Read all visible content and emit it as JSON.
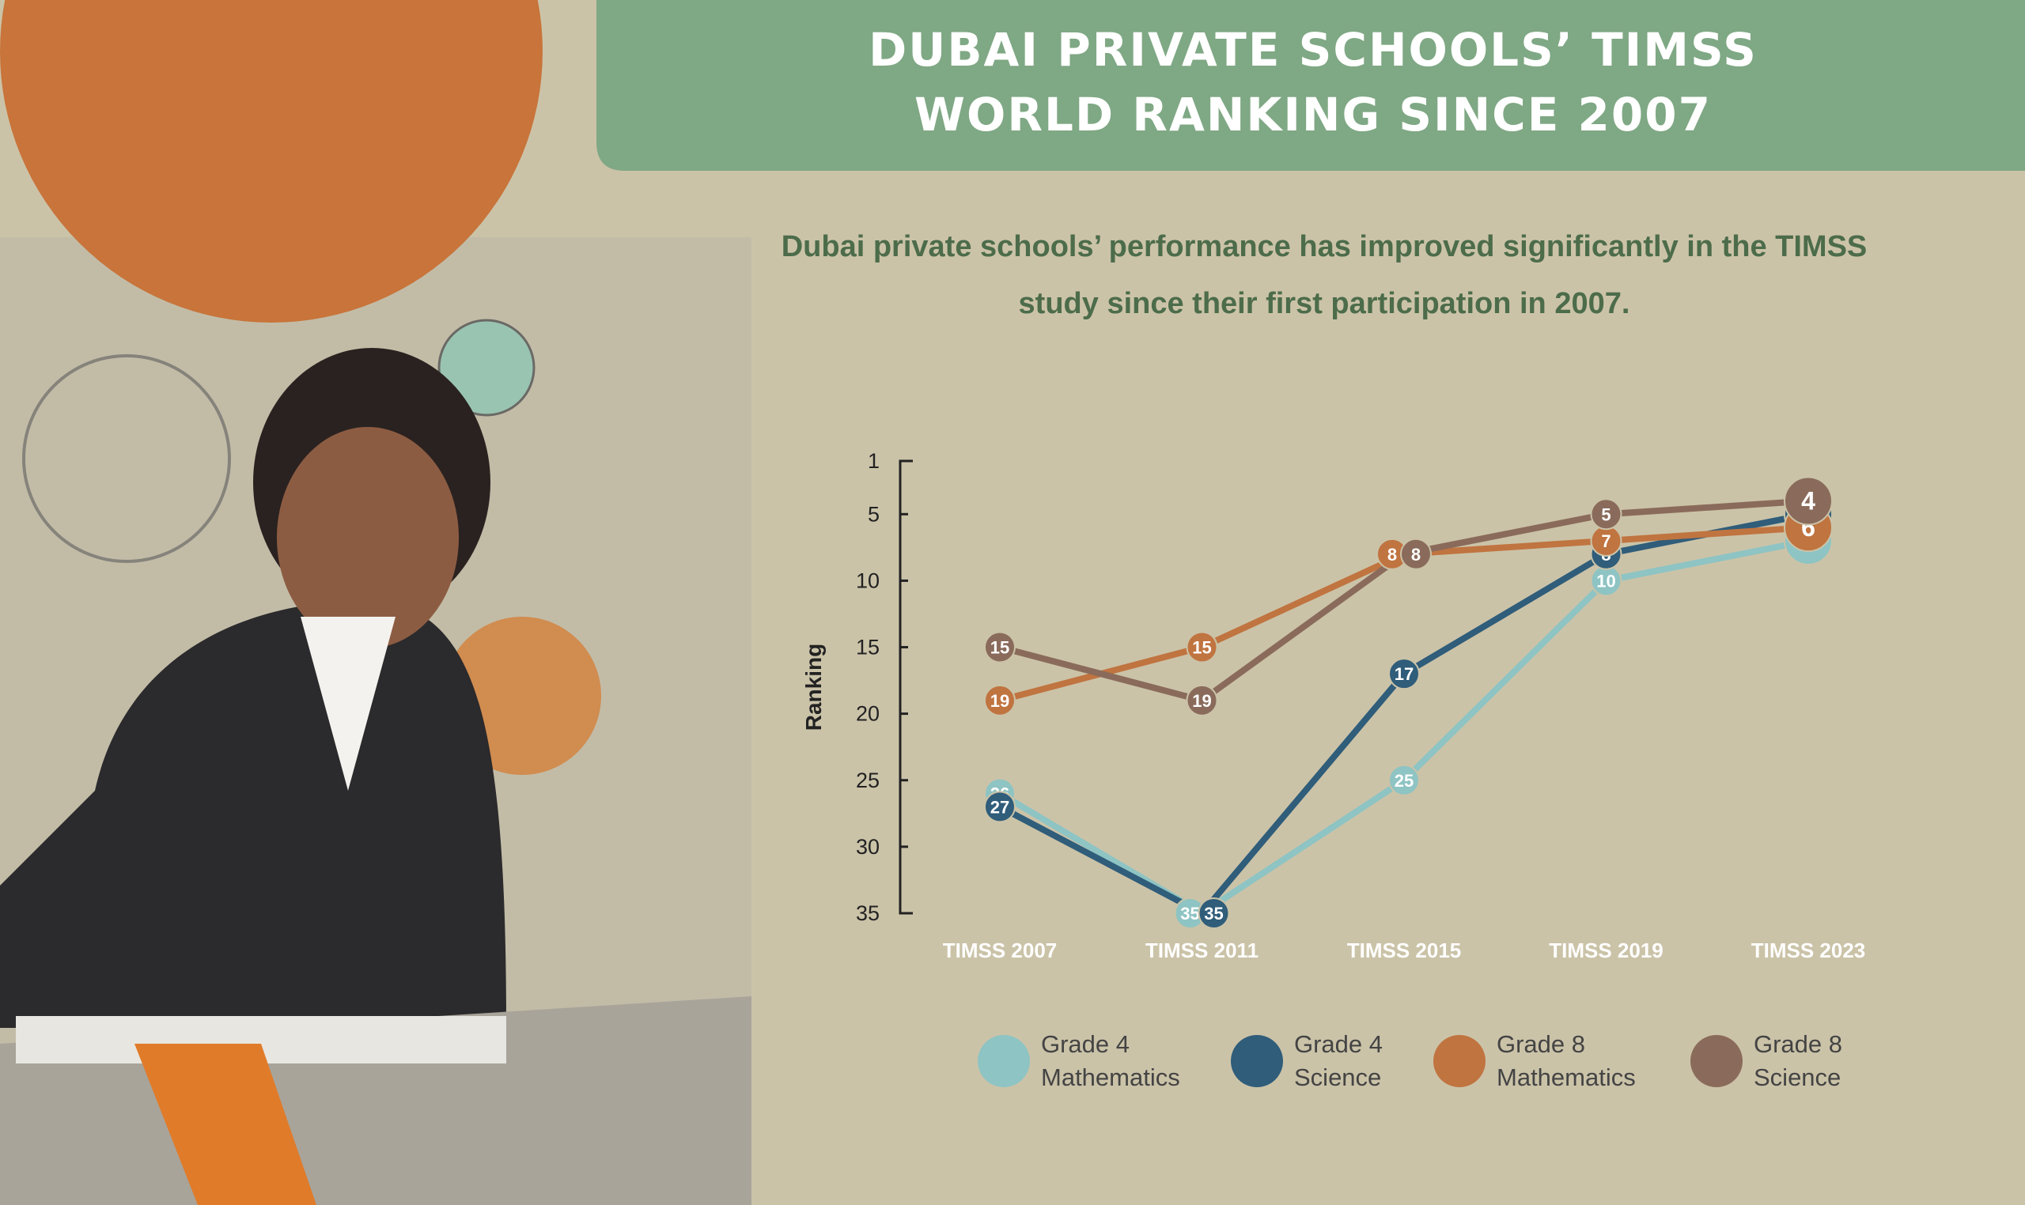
{
  "chart_data": {
    "type": "line",
    "title": "DUBAI PRIVATE SCHOOLS’ TIMSS WORLD RANKING SINCE 2007",
    "subtitle": "Dubai private schools’ performance has improved significantly in the TIMSS study since their first participation in 2007.",
    "y_label": "Ranking",
    "categories": [
      "TIMSS 2007",
      "TIMSS 2011",
      "TIMSS 2015",
      "TIMSS 2019",
      "TIMSS 2023"
    ],
    "series": [
      {
        "name": "Grade 4 Mathematics",
        "color": "#8ec4c3",
        "values": [
          26,
          35,
          25,
          10,
          7
        ]
      },
      {
        "name": "Grade 4 Science",
        "color": "#2f5d7a",
        "values": [
          27,
          35,
          17,
          8,
          5
        ]
      },
      {
        "name": "Grade 8 Mathematics",
        "color": "#c07440",
        "values": [
          19,
          15,
          8,
          7,
          6
        ]
      },
      {
        "name": "Grade 8 Science",
        "color": "#8a6b5b",
        "values": [
          15,
          19,
          8,
          5,
          4
        ]
      }
    ],
    "ylim": [
      1,
      35
    ],
    "y_inverted": true,
    "yticks": [
      1,
      5,
      10,
      15,
      20,
      25,
      30,
      35
    ],
    "legend": "bottom"
  }
}
